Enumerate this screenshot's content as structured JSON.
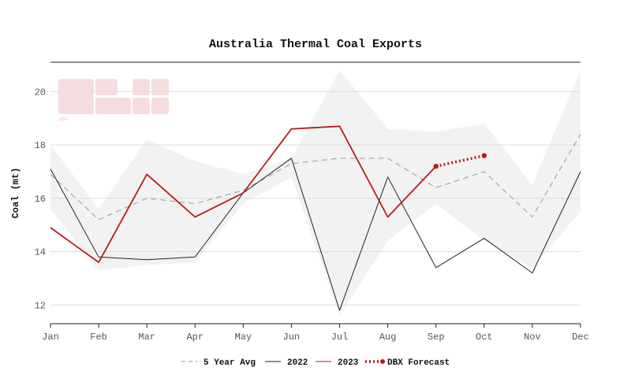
{
  "chart_data": {
    "type": "line",
    "title": "Australia Thermal Coal Exports",
    "xlabel": "",
    "ylabel": "Coal (mt)",
    "categories": [
      "Jan",
      "Feb",
      "Mar",
      "Apr",
      "May",
      "Jun",
      "Jul",
      "Aug",
      "Sep",
      "Oct",
      "Nov",
      "Dec"
    ],
    "ylim": [
      11.3,
      21.1
    ],
    "yticks": [
      12,
      14,
      16,
      18,
      20
    ],
    "grid": true,
    "legend_position": "bottom",
    "range_band": {
      "upper": [
        18.0,
        15.6,
        18.2,
        17.4,
        16.9,
        17.5,
        20.8,
        18.6,
        18.5,
        18.8,
        16.5,
        20.8
      ],
      "lower": [
        15.6,
        13.3,
        13.5,
        13.6,
        15.8,
        16.8,
        11.6,
        14.4,
        15.8,
        14.4,
        13.4,
        15.5
      ]
    },
    "series": [
      {
        "name": "5 Year Avg",
        "color": "#999999",
        "style": "dashed",
        "values": [
          16.9,
          15.2,
          16.0,
          15.8,
          16.3,
          17.3,
          17.5,
          17.5,
          16.4,
          17.0,
          15.3,
          18.4
        ]
      },
      {
        "name": "2022",
        "color": "#222222",
        "style": "solid",
        "values": [
          17.1,
          13.8,
          13.7,
          13.8,
          16.2,
          17.5,
          11.8,
          16.8,
          13.4,
          14.5,
          13.2,
          17.0
        ]
      },
      {
        "name": "2023",
        "color": "#b71c1c",
        "style": "solid",
        "values": [
          14.9,
          13.6,
          16.9,
          15.3,
          16.2,
          18.6,
          18.7,
          15.3,
          17.2,
          null,
          null,
          null
        ]
      },
      {
        "name": "DBX Forecast",
        "color": "#b71c1c",
        "style": "dotted",
        "values": [
          null,
          null,
          null,
          null,
          null,
          null,
          null,
          null,
          17.2,
          17.6,
          null,
          null
        ]
      }
    ],
    "watermark": "DBX"
  }
}
